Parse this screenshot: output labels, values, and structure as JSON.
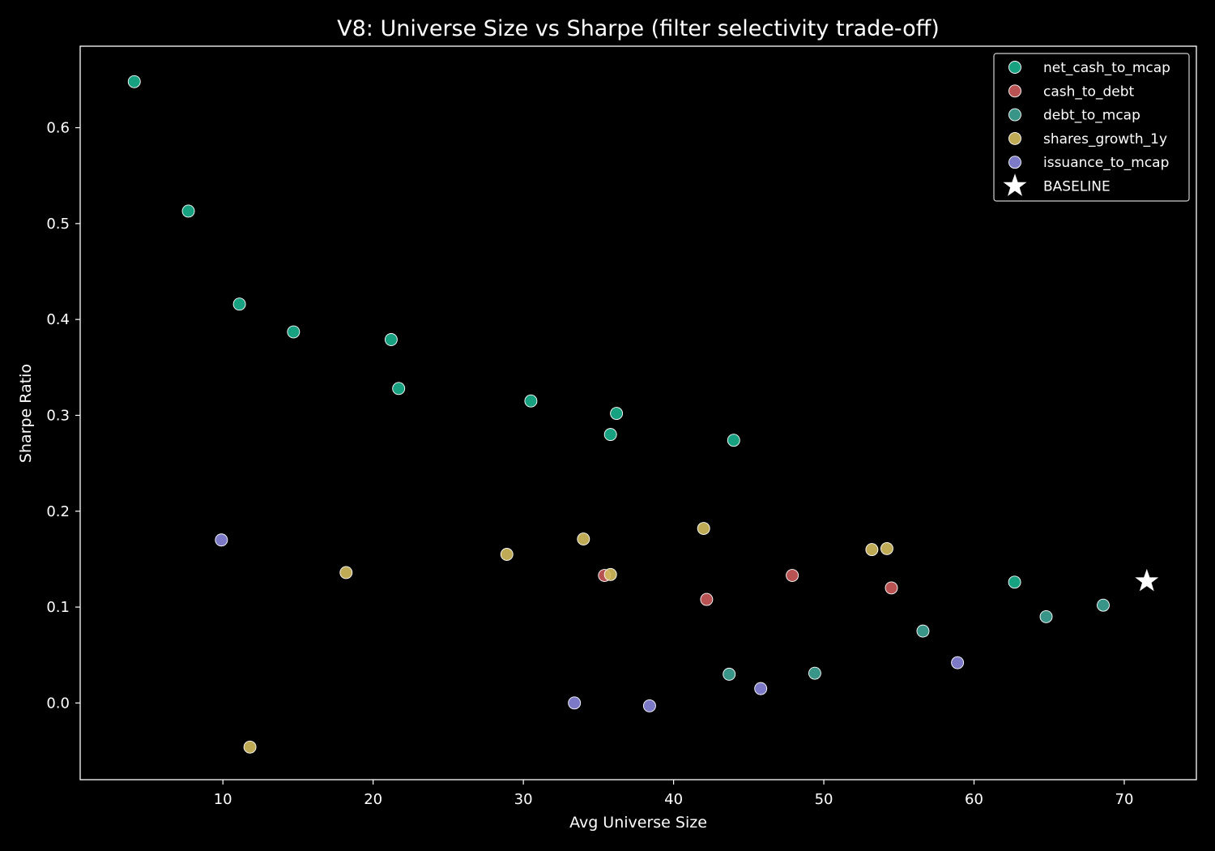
{
  "chart_data": {
    "type": "scatter",
    "title": "V8: Universe Size vs Sharpe (filter selectivity trade-off)",
    "xlabel": "Avg Universe Size",
    "ylabel": "Sharpe Ratio",
    "xlim": [
      0.5,
      74.8
    ],
    "ylim": [
      -0.08,
      0.685
    ],
    "xticks": [
      10,
      20,
      30,
      40,
      50,
      60,
      70
    ],
    "yticks": [
      0.0,
      0.1,
      0.2,
      0.3,
      0.4,
      0.5,
      0.6
    ],
    "xtick_labels": [
      "10",
      "20",
      "30",
      "40",
      "50",
      "60",
      "70"
    ],
    "ytick_labels": [
      "0.0",
      "0.1",
      "0.2",
      "0.3",
      "0.4",
      "0.5",
      "0.6"
    ],
    "grid": false,
    "legend_position": "top-right",
    "series": [
      {
        "name": "net_cash_to_mcap",
        "color": "#1ab28e",
        "marker": "circle",
        "points": [
          [
            4.1,
            0.648
          ],
          [
            7.7,
            0.513
          ],
          [
            11.1,
            0.416
          ],
          [
            14.7,
            0.387
          ],
          [
            21.2,
            0.379
          ],
          [
            21.7,
            0.328
          ],
          [
            30.5,
            0.315
          ],
          [
            36.2,
            0.302
          ],
          [
            35.8,
            0.28
          ],
          [
            44.0,
            0.274
          ],
          [
            62.7,
            0.126
          ]
        ]
      },
      {
        "name": "cash_to_debt",
        "color": "#cd5c5c",
        "marker": "circle",
        "points": [
          [
            35.4,
            0.133
          ],
          [
            42.2,
            0.108
          ],
          [
            47.9,
            0.133
          ],
          [
            54.5,
            0.12
          ]
        ]
      },
      {
        "name": "debt_to_mcap",
        "color": "#3fa596",
        "marker": "circle",
        "points": [
          [
            43.7,
            0.03
          ],
          [
            49.4,
            0.031
          ],
          [
            56.6,
            0.075
          ],
          [
            64.8,
            0.09
          ],
          [
            68.6,
            0.102
          ]
        ]
      },
      {
        "name": "shares_growth_1y",
        "color": "#d4bd5e",
        "marker": "circle",
        "points": [
          [
            11.8,
            -0.046
          ],
          [
            18.2,
            0.136
          ],
          [
            28.9,
            0.155
          ],
          [
            34.0,
            0.171
          ],
          [
            35.8,
            0.134
          ],
          [
            42.0,
            0.182
          ],
          [
            53.2,
            0.16
          ],
          [
            54.2,
            0.161
          ]
        ]
      },
      {
        "name": "issuance_to_mcap",
        "color": "#8a86dd",
        "marker": "circle",
        "points": [
          [
            9.9,
            0.17
          ],
          [
            33.4,
            0.0
          ],
          [
            38.4,
            -0.003
          ],
          [
            45.8,
            0.015
          ],
          [
            58.9,
            0.042
          ]
        ]
      },
      {
        "name": "BASELINE",
        "color": "#ffffff",
        "marker": "star",
        "points": [
          [
            71.5,
            0.127
          ]
        ]
      }
    ]
  }
}
